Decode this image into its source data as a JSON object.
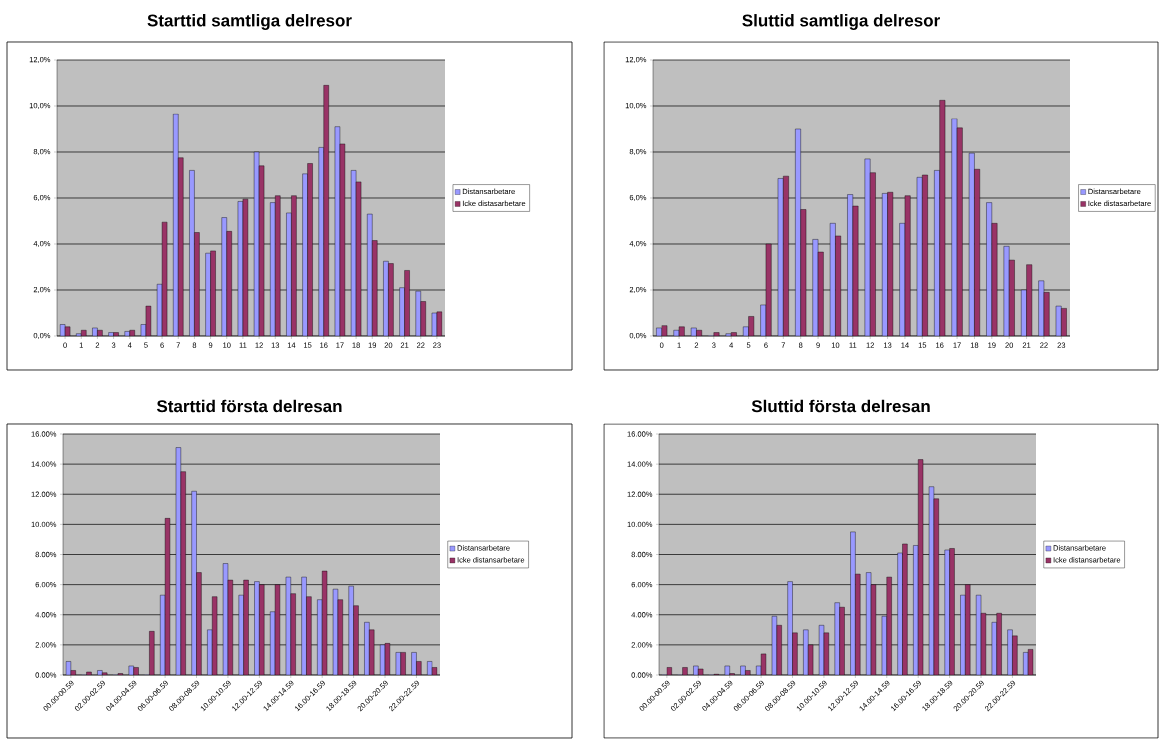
{
  "chart_data": [
    {
      "type": "bar",
      "title": "Starttid samtliga delresor",
      "categories": [
        "0",
        "1",
        "2",
        "3",
        "4",
        "5",
        "6",
        "7",
        "8",
        "9",
        "10",
        "11",
        "12",
        "13",
        "14",
        "15",
        "16",
        "17",
        "18",
        "19",
        "20",
        "21",
        "22",
        "23"
      ],
      "series": [
        {
          "name": "Distansarbetare",
          "color": "#9999ff",
          "values": [
            0.5,
            0.1,
            0.35,
            0.15,
            0.2,
            0.5,
            2.25,
            9.65,
            7.2,
            3.6,
            5.15,
            5.85,
            8.0,
            5.8,
            5.35,
            7.05,
            8.2,
            9.1,
            7.2,
            5.3,
            3.25,
            2.1,
            1.95,
            1.0
          ]
        },
        {
          "name": "Icke distasarbetare",
          "color": "#993366",
          "values": [
            0.4,
            0.25,
            0.25,
            0.15,
            0.25,
            1.3,
            4.95,
            7.75,
            4.5,
            3.7,
            4.55,
            5.95,
            7.4,
            6.1,
            6.1,
            7.5,
            10.9,
            8.35,
            6.7,
            4.15,
            3.15,
            2.85,
            1.5,
            1.05
          ]
        }
      ],
      "ylim": [
        0,
        12
      ],
      "yticks": [
        {
          "value": 0,
          "label": "0,0%"
        },
        {
          "value": 2,
          "label": "2,0%"
        },
        {
          "value": 4,
          "label": "4,0%"
        },
        {
          "value": 6,
          "label": "6,0%"
        },
        {
          "value": 8,
          "label": "8,0%"
        },
        {
          "value": 10,
          "label": "10,0%"
        },
        {
          "value": 12,
          "label": "12,0%"
        }
      ],
      "grid": "y",
      "legend": "right"
    },
    {
      "type": "bar",
      "title": "Sluttid samtliga delresor",
      "categories": [
        "0",
        "1",
        "2",
        "3",
        "4",
        "5",
        "6",
        "7",
        "8",
        "9",
        "10",
        "11",
        "12",
        "13",
        "14",
        "15",
        "16",
        "17",
        "18",
        "19",
        "20",
        "21",
        "22",
        "23"
      ],
      "series": [
        {
          "name": "Distansarbetare",
          "color": "#9999ff",
          "values": [
            0.35,
            0.25,
            0.35,
            0,
            0.1,
            0.4,
            1.35,
            6.85,
            9.0,
            4.2,
            4.9,
            6.15,
            7.7,
            6.2,
            4.9,
            6.9,
            7.2,
            9.45,
            7.95,
            5.8,
            3.9,
            2.0,
            2.4,
            1.3
          ]
        },
        {
          "name": "Icke distasarbetare",
          "color": "#993366",
          "values": [
            0.45,
            0.4,
            0.25,
            0.15,
            0.15,
            0.85,
            4.0,
            6.95,
            5.5,
            3.65,
            4.35,
            5.65,
            7.1,
            6.25,
            6.1,
            7.0,
            10.25,
            9.05,
            7.25,
            4.9,
            3.3,
            3.1,
            1.9,
            1.2
          ]
        }
      ],
      "ylim": [
        0,
        12
      ],
      "yticks": [
        {
          "value": 0,
          "label": "0,0%"
        },
        {
          "value": 2,
          "label": "2,0%"
        },
        {
          "value": 4,
          "label": "4,0%"
        },
        {
          "value": 6,
          "label": "6,0%"
        },
        {
          "value": 8,
          "label": "8,0%"
        },
        {
          "value": 10,
          "label": "10,0%"
        },
        {
          "value": 12,
          "label": "12,0%"
        }
      ],
      "grid": "y",
      "legend": "right"
    },
    {
      "type": "bar",
      "title": "Starttid första delresan",
      "categories": [
        "00.00-00.59",
        null,
        "02.00-02.59",
        null,
        "04.00-04.59",
        null,
        "06.00-06.59",
        null,
        "08.00-08.59",
        null,
        "10.00-10.59",
        null,
        "12.00-12.59",
        null,
        "14.00-14.59",
        null,
        "16.00-16.59",
        null,
        "18.00-18.59",
        null,
        "20.00-20.59",
        null,
        "22.00-22.59",
        null
      ],
      "series": [
        {
          "name": "Distansarbetare",
          "color": "#9999ff",
          "values": [
            0.9,
            0,
            0.3,
            0,
            0.6,
            0,
            5.3,
            15.1,
            12.2,
            3.0,
            7.4,
            5.3,
            6.2,
            4.2,
            6.5,
            6.5,
            5.0,
            5.7,
            5.9,
            3.5,
            2.0,
            1.5,
            1.5,
            0.9
          ]
        },
        {
          "name": "Icke distansarbetare",
          "color": "#993366",
          "values": [
            0.3,
            0.2,
            0.15,
            0.1,
            0.5,
            2.9,
            10.4,
            13.5,
            6.8,
            5.2,
            6.3,
            6.3,
            6.0,
            6.0,
            5.4,
            5.2,
            6.9,
            5.0,
            4.6,
            3.0,
            2.1,
            1.5,
            0.9,
            0.5
          ]
        }
      ],
      "ylim": [
        0,
        16
      ],
      "yticks": [
        {
          "value": 0,
          "label": "0.00%"
        },
        {
          "value": 2,
          "label": "2.00%"
        },
        {
          "value": 4,
          "label": "4.00%"
        },
        {
          "value": 6,
          "label": "6.00%"
        },
        {
          "value": 8,
          "label": "8.00%"
        },
        {
          "value": 10,
          "label": "10.00%"
        },
        {
          "value": 12,
          "label": "12.00%"
        },
        {
          "value": 14,
          "label": "14.00%"
        },
        {
          "value": 16,
          "label": "16.00%"
        }
      ],
      "grid": "y",
      "legend": "right"
    },
    {
      "type": "bar",
      "title": "Sluttid första delresan",
      "categories": [
        "00.00-00.59",
        null,
        "02.00-02.59",
        null,
        "04.00-04.59",
        null,
        "06.00-06.59",
        null,
        "08.00-08.59",
        null,
        "10.00-10.59",
        null,
        "12.00-12.59",
        null,
        "14.00-14.59",
        null,
        "16.00-16.59",
        null,
        "18.00-18.59",
        null,
        "20.00-20.59",
        null,
        "22.00-22.59",
        null
      ],
      "series": [
        {
          "name": "Distansarbetare",
          "color": "#9999ff",
          "values": [
            0,
            0,
            0.6,
            0,
            0.6,
            0.6,
            0.6,
            3.9,
            6.2,
            3.0,
            3.3,
            4.8,
            9.5,
            6.8,
            3.9,
            8.1,
            8.6,
            12.5,
            8.3,
            5.3,
            5.3,
            3.5,
            3.0,
            1.5
          ]
        },
        {
          "name": "Icke distansarbetare",
          "color": "#993366",
          "values": [
            0.5,
            0.5,
            0.4,
            0.05,
            0.1,
            0.3,
            1.4,
            3.3,
            2.8,
            2.0,
            2.8,
            4.5,
            6.7,
            6.0,
            6.5,
            8.7,
            14.3,
            11.7,
            8.4,
            6.0,
            4.1,
            4.1,
            2.6,
            1.7
          ]
        }
      ],
      "ylim": [
        0,
        16
      ],
      "yticks": [
        {
          "value": 0,
          "label": "0.00%"
        },
        {
          "value": 2,
          "label": "2.00%"
        },
        {
          "value": 4,
          "label": "4.00%"
        },
        {
          "value": 6,
          "label": "6.00%"
        },
        {
          "value": 8,
          "label": "8.00%"
        },
        {
          "value": 10,
          "label": "10.00%"
        },
        {
          "value": 12,
          "label": "12.00%"
        },
        {
          "value": 14,
          "label": "14.00%"
        },
        {
          "value": 16,
          "label": "16.00%"
        }
      ],
      "grid": "y",
      "legend": "right"
    }
  ]
}
